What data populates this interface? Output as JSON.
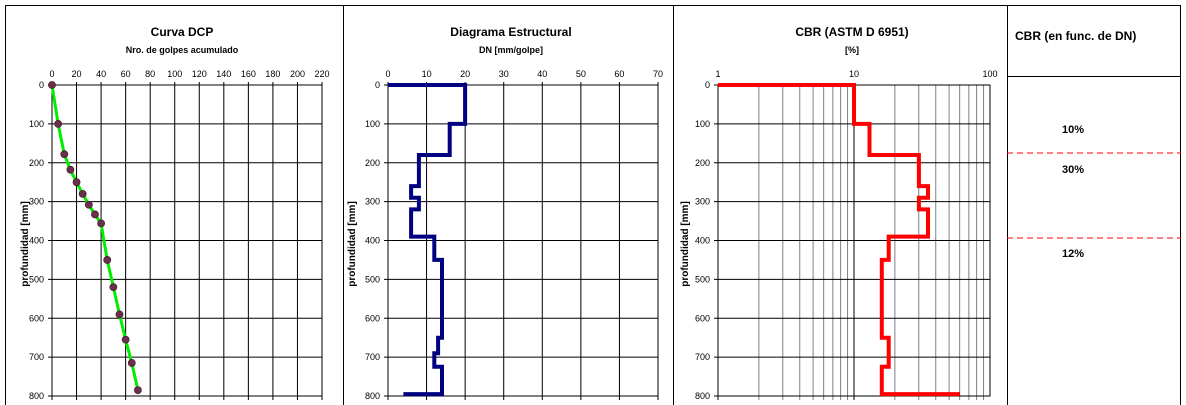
{
  "chart_data": [
    {
      "type": "scatter",
      "title": "Curva DCP",
      "xlabel": "Nro. de golpes acumulado",
      "ylabel": "profundidad [mm]",
      "xlim": [
        0,
        220
      ],
      "xticks": [
        0,
        20,
        40,
        60,
        80,
        100,
        120,
        140,
        160,
        180,
        200,
        220
      ],
      "ylim": [
        0,
        800
      ],
      "yticks": [
        0,
        100,
        200,
        300,
        400,
        500,
        600,
        700,
        800
      ],
      "grid": true,
      "series": [
        {
          "color": "#00ee00",
          "marker_color": "#6b2f4a",
          "x": [
            0,
            5,
            10,
            15,
            20,
            25,
            30,
            35,
            40,
            45,
            50,
            55,
            60,
            65,
            70
          ],
          "y": [
            0,
            100,
            178,
            218,
            250,
            280,
            308,
            333,
            356,
            450,
            520,
            590,
            655,
            715,
            785
          ]
        }
      ]
    },
    {
      "type": "line",
      "title": "Diagrama Estructural",
      "xlabel": "DN [mm/golpe]",
      "ylabel": "profundidad [mm]",
      "xlim": [
        0,
        70
      ],
      "xticks": [
        0,
        10,
        20,
        30,
        40,
        50,
        60,
        70
      ],
      "ylim": [
        0,
        800
      ],
      "yticks": [
        0,
        100,
        200,
        300,
        400,
        500,
        600,
        700,
        800
      ],
      "grid": true,
      "series": [
        {
          "color": "#000080",
          "x": [
            0,
            20,
            20,
            16,
            16,
            8,
            8,
            6,
            6,
            8,
            8,
            6,
            6,
            12,
            12,
            14,
            14,
            13,
            13,
            12,
            12,
            14,
            14,
            4
          ],
          "y": [
            0,
            0,
            100,
            100,
            180,
            180,
            260,
            260,
            290,
            290,
            320,
            320,
            390,
            390,
            450,
            450,
            650,
            650,
            690,
            690,
            725,
            725,
            795,
            795
          ]
        }
      ]
    },
    {
      "type": "line",
      "title": "CBR (ASTM D 6951)",
      "xlabel": "[%]",
      "ylabel": "profundidad [mm]",
      "xscale": "log",
      "xlim": [
        1,
        100
      ],
      "xticks": [
        1,
        10,
        100
      ],
      "ylim": [
        0,
        800
      ],
      "yticks": [
        0,
        100,
        200,
        300,
        400,
        500,
        600,
        700,
        800
      ],
      "grid": true,
      "series": [
        {
          "color": "#ff0000",
          "x": [
            1,
            10,
            10,
            13,
            13,
            30,
            30,
            35,
            35,
            30,
            30,
            35,
            35,
            18,
            18,
            16,
            16,
            18,
            18,
            16,
            16,
            60
          ],
          "y": [
            0,
            0,
            100,
            100,
            180,
            180,
            260,
            260,
            290,
            290,
            320,
            320,
            390,
            390,
            450,
            450,
            650,
            650,
            725,
            725,
            795,
            795
          ]
        }
      ]
    }
  ],
  "cbr_panel": {
    "title": "CBR (en func. de DN)",
    "layers": [
      {
        "label": "10%"
      },
      {
        "label": "30%"
      },
      {
        "label": "12%"
      }
    ]
  },
  "colors": {
    "grid": "#000000",
    "frame": "#000000",
    "divider": "#ff0000"
  }
}
